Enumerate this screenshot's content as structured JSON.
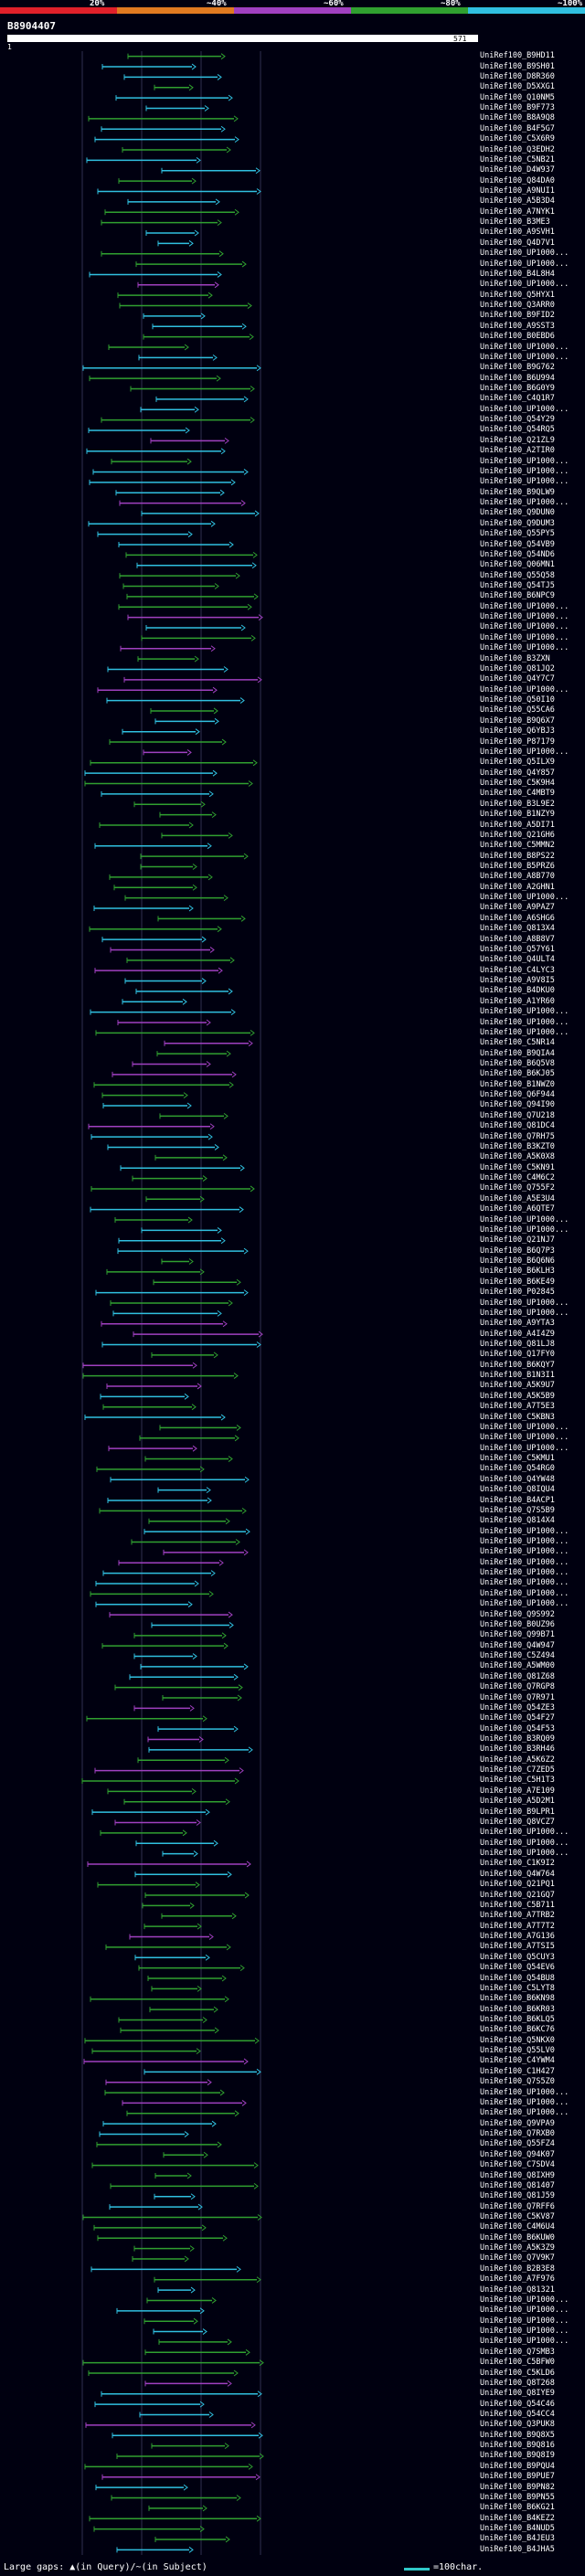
{
  "legend": {
    "labels": [
      "20%",
      "~40%",
      "~60%",
      "~80%",
      "~100%"
    ],
    "colors": [
      "#e0202a",
      "#e07a20",
      "#a040c0",
      "#30a030",
      "#30c0e0"
    ]
  },
  "query": {
    "title": "B8904407",
    "ruler_start": "1",
    "ruler_end": "571"
  },
  "hit_labels": [
    "UniRef100_B9HD11",
    "UniRef100_B9SH01",
    "UniRef100_D8R360",
    "UniRef100_D5XXG1",
    "UniRef100_Q10NM5",
    "UniRef100_B9F773",
    "UniRef100_B8A9Q8",
    "UniRef100_B4F5G7",
    "UniRef100_C5X6R9",
    "UniRef100_Q3EDH2",
    "UniRef100_C5NB21",
    "UniRef100_D4W937",
    "UniRef100_Q84DA0",
    "UniRef100_A9NUI1",
    "UniRef100_A5B3D4",
    "UniRef100_A7NYK1",
    "UniRef100_B3ME3",
    "UniRef100_A9SVH1",
    "UniRef100_Q4D7V1",
    "UniRef100_UP1000...",
    "UniRef100_UP1000...",
    "UniRef100_B4L8H4",
    "UniRef100_UP1000...",
    "UniRef100_Q5HYX1",
    "UniRef100_Q3ARR0",
    "UniRef100_B9FID2",
    "UniRef100_A9SST3",
    "UniRef100_B0EBD6",
    "UniRef100_UP1000...",
    "UniRef100_UP1000...",
    "UniRef100_B9G762",
    "UniRef100_B6U994",
    "UniRef100_B6G0Y9",
    "UniRef100_C4Q1R7",
    "UniRef100_UP1000...",
    "UniRef100_Q54Y29",
    "UniRef100_Q54RQ5",
    "UniRef100_Q21ZL9",
    "UniRef100_A2TIR0",
    "UniRef100_UP1000...",
    "UniRef100_UP1000...",
    "UniRef100_UP1000...",
    "UniRef100_B9QLW9",
    "UniRef100_UP1000...",
    "UniRef100_Q9DUN0",
    "UniRef100_Q9DUM3",
    "UniRef100_Q55PY5",
    "UniRef100_Q54VB9",
    "UniRef100_Q54ND6",
    "UniRef100_Q06MN1",
    "UniRef100_Q55Q58",
    "UniRef100_Q54TJ5",
    "UniRef100_B6NPC9",
    "UniRef100_UP1000...",
    "UniRef100_UP1000...",
    "UniRef100_UP1000...",
    "UniRef100_UP1000...",
    "UniRef100_UP1000...",
    "UniRef100_B3ZXN",
    "UniRef100_Q81JQ2",
    "UniRef100_Q4Y7C7",
    "UniRef100_UP1000...",
    "UniRef100_Q50I10",
    "UniRef100_Q55CA6",
    "UniRef100_B9Q6X7",
    "UniRef100_Q6YBJ3",
    "UniRef100_P87179",
    "UniRef100_UP1000...",
    "UniRef100_Q5ILX9",
    "UniRef100_Q4Y857",
    "UniRef100_C5K9H4",
    "UniRef100_C4MBT9",
    "UniRef100_B3L9E2",
    "UniRef100_B1NZY9",
    "UniRef100_A5DI71",
    "UniRef100_Q21GH6",
    "UniRef100_C5MMN2",
    "UniRef100_B8PS22",
    "UniRef100_B5PRZ6",
    "UniRef100_A8B770",
    "UniRef100_A2GHN1",
    "UniRef100_UP1000...",
    "UniRef100_A9PAZ7",
    "UniRef100_A6SHG6",
    "UniRef100_Q813X4",
    "UniRef100_A8B8V7",
    "UniRef100_Q57Y61",
    "UniRef100_Q4ULT4",
    "UniRef100_C4LYC3",
    "UniRef100_A9V8I5",
    "UniRef100_B4DKU0",
    "UniRef100_A1YR60",
    "UniRef100_UP1000...",
    "UniRef100_UP1000...",
    "UniRef100_UP1000...",
    "UniRef100_C5NR14",
    "UniRef100_B9QIA4",
    "UniRef100_B6Q5V8",
    "UniRef100_B6KJ05",
    "UniRef100_B1NWZ0",
    "UniRef100_Q6F944",
    "UniRef100_Q94I90",
    "UniRef100_Q7U218",
    "UniRef100_Q81DC4",
    "UniRef100_Q7RH75",
    "UniRef100_B3KZT0",
    "UniRef100_A5K0X8",
    "UniRef100_C5KN91",
    "UniRef100_C4M6C2",
    "UniRef100_Q755F2",
    "UniRef100_A5E3U4",
    "UniRef100_A6QTE7",
    "UniRef100_UP1000...",
    "UniRef100_UP1000...",
    "UniRef100_Q21NJ7",
    "UniRef100_B6Q7P3",
    "UniRef100_B6Q6N6",
    "UniRef100_B6KLH3",
    "UniRef100_B6KE49",
    "UniRef100_P02845",
    "UniRef100_UP1000...",
    "UniRef100_UP1000...",
    "UniRef100_A9YTA3",
    "UniRef100_A4I4Z9",
    "UniRef100_Q81LJ8",
    "UniRef100_Q17FY0",
    "UniRef100_B6KQY7",
    "UniRef100_B1N3I1",
    "UniRef100_A5K9U7",
    "UniRef100_A5K5B9",
    "UniRef100_A7T5E3",
    "UniRef100_C5KBN3",
    "UniRef100_UP1000...",
    "UniRef100_UP1000...",
    "UniRef100_UP1000...",
    "UniRef100_C5KMU1",
    "UniRef100_Q54RG0",
    "UniRef100_Q4YW48",
    "UniRef100_Q8IQU4",
    "UniRef100_B4ACP1",
    "UniRef100_Q7S5B9",
    "UniRef100_Q814X4",
    "UniRef100_UP1000...",
    "UniRef100_UP1000...",
    "UniRef100_UP1000...",
    "UniRef100_UP1000...",
    "UniRef100_UP1000...",
    "UniRef100_UP1000...",
    "UniRef100_UP1000...",
    "UniRef100_UP1000...",
    "UniRef100_Q9S992",
    "UniRef100_B0UZ96",
    "UniRef100_Q99B71",
    "UniRef100_Q4W947",
    "UniRef100_C5Z494",
    "UniRef100_A5WM00",
    "UniRef100_Q81Z68",
    "UniRef100_Q7RGP8",
    "UniRef100_Q7R971",
    "UniRef100_Q54ZE3",
    "UniRef100_Q54F27",
    "UniRef100_Q54F53",
    "UniRef100_B3RQ09",
    "UniRef100_B3RH46",
    "UniRef100_A5K6Z2",
    "UniRef100_C7ZED5",
    "UniRef100_C5H1T3",
    "UniRef100_A7E109",
    "UniRef100_A5D2M1",
    "UniRef100_B9LPR1",
    "UniRef100_Q8VCZ7",
    "UniRef100_UP1000...",
    "UniRef100_UP1000...",
    "UniRef100_UP1000...",
    "UniRef100_C1K9I2",
    "UniRef100_Q4W764",
    "UniRef100_Q21PQ1",
    "UniRef100_Q21GQ7",
    "UniRef100_C5B711",
    "UniRef100_A7TRB2",
    "UniRef100_A7T7T2",
    "UniRef100_A7G136",
    "UniRef100_A7TSI5",
    "UniRef100_Q5CUY3",
    "UniRef100_Q54EV6",
    "UniRef100_Q54BU8",
    "UniRef100_C5LYT8",
    "UniRef100_B6KN98",
    "UniRef100_B6KR03",
    "UniRef100_B6KLQ5",
    "UniRef100_B6KC76",
    "UniRef100_Q5NKX0",
    "UniRef100_Q55LV0",
    "UniRef100_C4YWM4",
    "UniRef100_C1H427",
    "UniRef100_Q7S5Z0",
    "UniRef100_UP1000...",
    "UniRef100_UP1000...",
    "UniRef100_UP1000...",
    "UniRef100_Q9VPA9",
    "UniRef100_Q7RXB0",
    "UniRef100_Q55FZ4",
    "UniRef100_Q94K07",
    "UniRef100_C7SDV4",
    "UniRef100_Q8IXH9",
    "UniRef100_Q81407",
    "UniRef100_Q81J59",
    "UniRef100_Q7RFF6",
    "UniRef100_C5KV87",
    "UniRef100_C4M6U4",
    "UniRef100_B6KUW0",
    "UniRef100_A5K3Z9",
    "UniRef100_Q7V9K7",
    "UniRef100_B2B3E8",
    "UniRef100_A7F976",
    "UniRef100_Q81321",
    "UniRef100_UP1000...",
    "UniRef100_UP1000...",
    "UniRef100_UP1000...",
    "UniRef100_UP1000...",
    "UniRef100_UP1000...",
    "UniRef100_Q7SMB3",
    "UniRef100_C5BFW0",
    "UniRef100_C5KLD6",
    "UniRef100_Q8T268",
    "UniRef100_Q8IYE9",
    "UniRef100_Q54C46",
    "UniRef100_Q54CC4",
    "UniRef100_Q3PUK8",
    "UniRef100_B9Q8X5",
    "UniRef100_B9Q816",
    "UniRef100_B9Q8I9",
    "UniRef100_B9PQU4",
    "UniRef100_B9PUE7",
    "UniRef100_B9PN82",
    "UniRef100_B9PN55",
    "UniRef100_B6KG21",
    "UniRef100_B4KEZ2",
    "UniRef100_B4NUD5",
    "UniRef100_B4JEU3",
    "UniRef100_B4JHA5"
  ],
  "footer": {
    "gaps_label": "Large gaps: ▲(in Query)/~(in Subject)",
    "scale_label": "=100char."
  }
}
